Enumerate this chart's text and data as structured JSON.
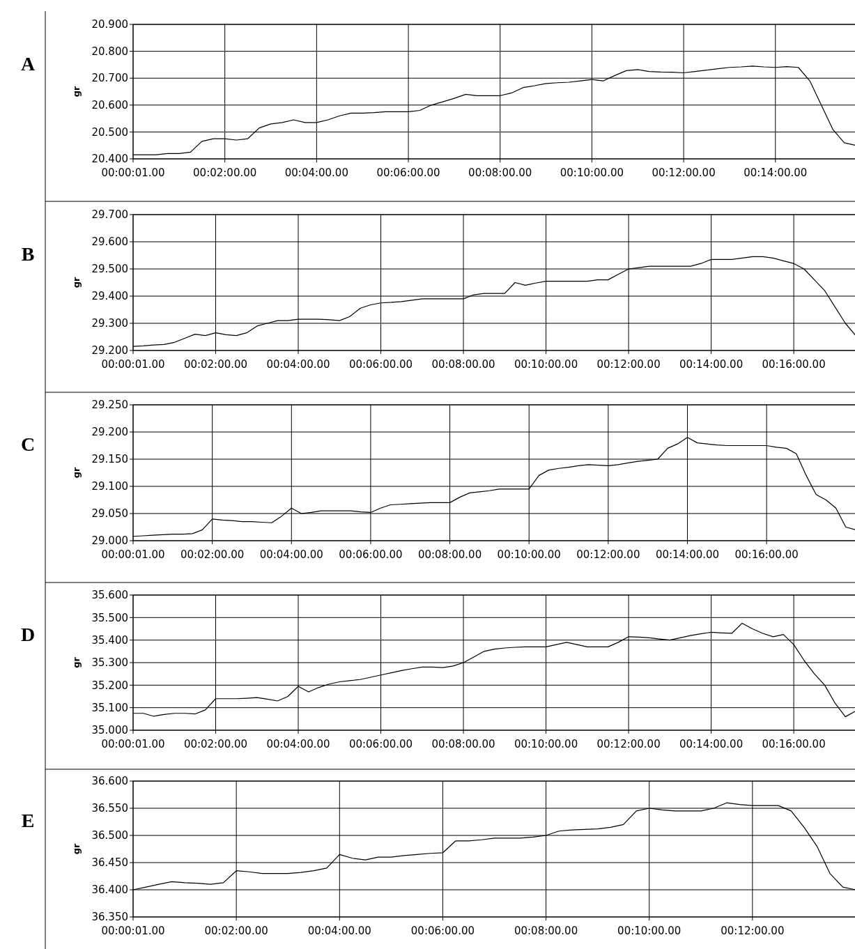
{
  "chart_data": [
    {
      "type": "line",
      "title": "A",
      "ylabel": "gr",
      "grid": true,
      "ylim": [
        20.4,
        20.9
      ],
      "categories": [
        "00:00:01.00",
        null,
        null,
        null,
        null,
        null,
        null,
        null,
        "00:02:00.00",
        null,
        null,
        null,
        null,
        null,
        null,
        null,
        "00:04:00.00",
        null,
        null,
        null,
        null,
        null,
        null,
        null,
        "00:06:00.00",
        null,
        null,
        null,
        null,
        null,
        null,
        null,
        "00:08:00.00",
        null,
        null,
        null,
        null,
        null,
        null,
        null,
        "00:10:00.00",
        null,
        null,
        null,
        null,
        null,
        null,
        null,
        "00:12:00.00",
        null,
        null,
        null,
        null,
        null,
        null,
        null,
        "00:14:00.00",
        null,
        null,
        null,
        null,
        null,
        null,
        null
      ],
      "yticks": [
        {
          "value": 20.4,
          "label": "20.400"
        },
        {
          "value": 20.5,
          "label": "20.500"
        },
        {
          "value": 20.6,
          "label": "20.600"
        },
        {
          "value": 20.7,
          "label": "20.700"
        },
        {
          "value": 20.8,
          "label": "20.800"
        },
        {
          "value": 20.9,
          "label": "20.900"
        }
      ],
      "series": [
        {
          "color": "#000000",
          "values": [
            20.415,
            20.415,
            20.415,
            20.42,
            20.42,
            20.425,
            20.465,
            20.475,
            20.475,
            20.47,
            20.475,
            20.515,
            20.53,
            20.535,
            20.545,
            20.535,
            20.535,
            20.545,
            20.56,
            20.57,
            20.57,
            20.572,
            20.575,
            20.575,
            20.575,
            20.58,
            20.6,
            20.612,
            20.625,
            20.64,
            20.635,
            20.635,
            20.635,
            20.645,
            20.665,
            20.672,
            20.68,
            20.683,
            20.685,
            20.69,
            20.695,
            20.69,
            20.71,
            20.728,
            20.732,
            20.725,
            20.723,
            20.722,
            20.72,
            20.725,
            20.73,
            20.735,
            20.74,
            20.742,
            20.745,
            20.742,
            20.74,
            20.743,
            20.74,
            20.69,
            20.6,
            20.51,
            20.46,
            20.45
          ]
        }
      ]
    },
    {
      "type": "line",
      "title": "B",
      "ylabel": "gr",
      "grid": true,
      "ylim": [
        29.2,
        29.7
      ],
      "categories": [
        "00:00:01.00",
        null,
        null,
        null,
        null,
        null,
        null,
        null,
        "00:02:00.00",
        null,
        null,
        null,
        null,
        null,
        null,
        null,
        "00:04:00.00",
        null,
        null,
        null,
        null,
        null,
        null,
        null,
        "00:06:00.00",
        null,
        null,
        null,
        null,
        null,
        null,
        null,
        "00:08:00.00",
        null,
        null,
        null,
        null,
        null,
        null,
        null,
        "00:10:00.00",
        null,
        null,
        null,
        null,
        null,
        null,
        null,
        "00:12:00.00",
        null,
        null,
        null,
        null,
        null,
        null,
        null,
        "00:14:00.00",
        null,
        null,
        null,
        null,
        null,
        null,
        null,
        "00:16:00.00",
        null,
        null,
        null,
        null,
        null,
        null
      ],
      "yticks": [
        {
          "value": 29.2,
          "label": "29.200"
        },
        {
          "value": 29.3,
          "label": "29.300"
        },
        {
          "value": 29.4,
          "label": "29.400"
        },
        {
          "value": 29.5,
          "label": "29.500"
        },
        {
          "value": 29.6,
          "label": "29.600"
        },
        {
          "value": 29.7,
          "label": "29.700"
        }
      ],
      "series": [
        {
          "color": "#000000",
          "values": [
            29.215,
            29.217,
            29.22,
            29.222,
            29.23,
            29.245,
            29.26,
            29.255,
            29.265,
            29.258,
            29.255,
            29.265,
            29.29,
            29.3,
            29.31,
            29.31,
            29.315,
            29.315,
            29.315,
            29.313,
            29.31,
            29.325,
            29.355,
            29.368,
            29.375,
            29.377,
            29.38,
            29.385,
            29.39,
            29.39,
            29.39,
            29.39,
            29.39,
            29.405,
            29.41,
            29.41,
            29.41,
            29.45,
            29.44,
            29.448,
            29.455,
            29.455,
            29.455,
            29.455,
            29.455,
            29.46,
            29.46,
            29.48,
            29.5,
            29.505,
            29.51,
            29.51,
            29.51,
            29.51,
            29.51,
            29.52,
            29.535,
            29.535,
            29.535,
            29.54,
            29.545,
            29.545,
            29.54,
            29.53,
            29.52,
            29.5,
            29.46,
            29.42,
            29.36,
            29.3,
            29.255
          ]
        }
      ]
    },
    {
      "type": "line",
      "title": "C",
      "ylabel": "gr",
      "grid": true,
      "ylim": [
        29.0,
        29.25
      ],
      "categories": [
        "00:00:01.00",
        null,
        null,
        null,
        null,
        null,
        null,
        null,
        "00:02:00.00",
        null,
        null,
        null,
        null,
        null,
        null,
        null,
        "00:04:00.00",
        null,
        null,
        null,
        null,
        null,
        null,
        null,
        "00:06:00.00",
        null,
        null,
        null,
        null,
        null,
        null,
        null,
        "00:08:00.00",
        null,
        null,
        null,
        null,
        null,
        null,
        null,
        "00:10:00.00",
        null,
        null,
        null,
        null,
        null,
        null,
        null,
        "00:12:00.00",
        null,
        null,
        null,
        null,
        null,
        null,
        null,
        "00:14:00.00",
        null,
        null,
        null,
        null,
        null,
        null,
        null,
        "00:16:00.00",
        null,
        null,
        null,
        null,
        null,
        null,
        null,
        null,
        null
      ],
      "yticks": [
        {
          "value": 29.0,
          "label": "29.000"
        },
        {
          "value": 29.05,
          "label": "29.050"
        },
        {
          "value": 29.1,
          "label": "29.100"
        },
        {
          "value": 29.15,
          "label": "29.150"
        },
        {
          "value": 29.2,
          "label": "29.200"
        },
        {
          "value": 29.25,
          "label": "29.250"
        }
      ],
      "series": [
        {
          "color": "#000000",
          "values": [
            29.008,
            29.009,
            29.01,
            29.011,
            29.012,
            29.012,
            29.013,
            29.02,
            29.04,
            29.038,
            29.037,
            29.035,
            29.035,
            29.034,
            29.033,
            29.045,
            29.06,
            29.05,
            29.052,
            29.055,
            29.055,
            29.055,
            29.055,
            29.053,
            29.052,
            29.06,
            29.066,
            29.067,
            29.068,
            29.069,
            29.07,
            29.07,
            29.07,
            29.08,
            29.088,
            29.09,
            29.092,
            29.095,
            29.095,
            29.095,
            29.095,
            29.12,
            29.13,
            29.133,
            29.135,
            29.138,
            29.14,
            29.139,
            29.138,
            29.14,
            29.143,
            29.146,
            29.148,
            29.15,
            29.17,
            29.178,
            29.19,
            29.18,
            29.178,
            29.176,
            29.175,
            29.175,
            29.175,
            29.175,
            29.175,
            29.172,
            29.17,
            29.16,
            29.12,
            29.085,
            29.075,
            29.06,
            29.025,
            29.02
          ]
        }
      ]
    },
    {
      "type": "line",
      "title": "D",
      "ylabel": "gr",
      "grid": true,
      "ylim": [
        35.0,
        35.6
      ],
      "categories": [
        "00:00:01.00",
        null,
        null,
        null,
        null,
        null,
        null,
        null,
        "00:02:00.00",
        null,
        null,
        null,
        null,
        null,
        null,
        null,
        "00:04:00.00",
        null,
        null,
        null,
        null,
        null,
        null,
        null,
        "00:06:00.00",
        null,
        null,
        null,
        null,
        null,
        null,
        null,
        "00:08:00.00",
        null,
        null,
        null,
        null,
        null,
        null,
        null,
        "00:10:00.00",
        null,
        null,
        null,
        null,
        null,
        null,
        null,
        "00:12:00.00",
        null,
        null,
        null,
        null,
        null,
        null,
        null,
        "00:14:00.00",
        null,
        null,
        null,
        null,
        null,
        null,
        null,
        "00:16:00.00",
        null,
        null,
        null,
        null,
        null,
        null
      ],
      "yticks": [
        {
          "value": 35.0,
          "label": "35.000"
        },
        {
          "value": 35.1,
          "label": "35.100"
        },
        {
          "value": 35.2,
          "label": "35.200"
        },
        {
          "value": 35.3,
          "label": "35.300"
        },
        {
          "value": 35.4,
          "label": "35.400"
        },
        {
          "value": 35.5,
          "label": "35.500"
        },
        {
          "value": 35.6,
          "label": "35.600"
        }
      ],
      "series": [
        {
          "color": "#000000",
          "values": [
            35.075,
            35.075,
            35.062,
            35.07,
            35.075,
            35.075,
            35.072,
            35.09,
            35.14,
            35.14,
            35.14,
            35.142,
            35.145,
            35.138,
            35.13,
            35.15,
            35.195,
            35.17,
            35.19,
            35.205,
            35.215,
            35.22,
            35.225,
            35.235,
            35.245,
            35.255,
            35.265,
            35.273,
            35.28,
            35.28,
            35.278,
            35.285,
            35.3,
            35.325,
            35.35,
            35.36,
            35.365,
            35.368,
            35.37,
            35.37,
            35.37,
            35.38,
            35.39,
            35.38,
            35.37,
            35.37,
            35.37,
            35.39,
            35.415,
            35.413,
            35.41,
            35.405,
            35.4,
            35.41,
            35.42,
            35.428,
            35.435,
            35.432,
            35.43,
            35.475,
            35.45,
            35.43,
            35.415,
            35.425,
            35.38,
            35.31,
            35.25,
            35.2,
            35.12,
            35.06,
            35.085
          ]
        }
      ]
    },
    {
      "type": "line",
      "title": "E",
      "ylabel": "gr",
      "grid": true,
      "ylim": [
        36.35,
        36.6
      ],
      "categories": [
        "00:00:01.00",
        null,
        null,
        null,
        null,
        null,
        null,
        null,
        "00:02:00.00",
        null,
        null,
        null,
        null,
        null,
        null,
        null,
        "00:04:00.00",
        null,
        null,
        null,
        null,
        null,
        null,
        null,
        "00:06:00.00",
        null,
        null,
        null,
        null,
        null,
        null,
        null,
        "00:08:00.00",
        null,
        null,
        null,
        null,
        null,
        null,
        null,
        "00:10:00.00",
        null,
        null,
        null,
        null,
        null,
        null,
        null,
        "00:12:00.00",
        null,
        null,
        null,
        null,
        null,
        null,
        null,
        null
      ],
      "yticks": [
        {
          "value": 36.35,
          "label": "36.350"
        },
        {
          "value": 36.4,
          "label": "36.400"
        },
        {
          "value": 36.45,
          "label": "36.450"
        },
        {
          "value": 36.5,
          "label": "36.500"
        },
        {
          "value": 36.55,
          "label": "36.550"
        },
        {
          "value": 36.6,
          "label": "36.600"
        }
      ],
      "series": [
        {
          "color": "#000000",
          "values": [
            36.4,
            36.405,
            36.41,
            36.415,
            36.413,
            36.412,
            36.41,
            36.413,
            36.435,
            36.433,
            36.43,
            36.43,
            36.43,
            36.432,
            36.435,
            36.44,
            36.465,
            36.458,
            36.455,
            36.46,
            36.46,
            36.463,
            36.465,
            36.467,
            36.468,
            36.49,
            36.49,
            36.492,
            36.495,
            36.495,
            36.495,
            36.497,
            36.5,
            36.508,
            36.51,
            36.511,
            36.512,
            36.515,
            36.52,
            36.545,
            36.55,
            36.547,
            36.545,
            36.545,
            36.545,
            36.55,
            36.56,
            36.557,
            36.555,
            36.555,
            36.555,
            36.545,
            36.515,
            36.48,
            36.43,
            36.405,
            36.4
          ]
        }
      ]
    }
  ]
}
